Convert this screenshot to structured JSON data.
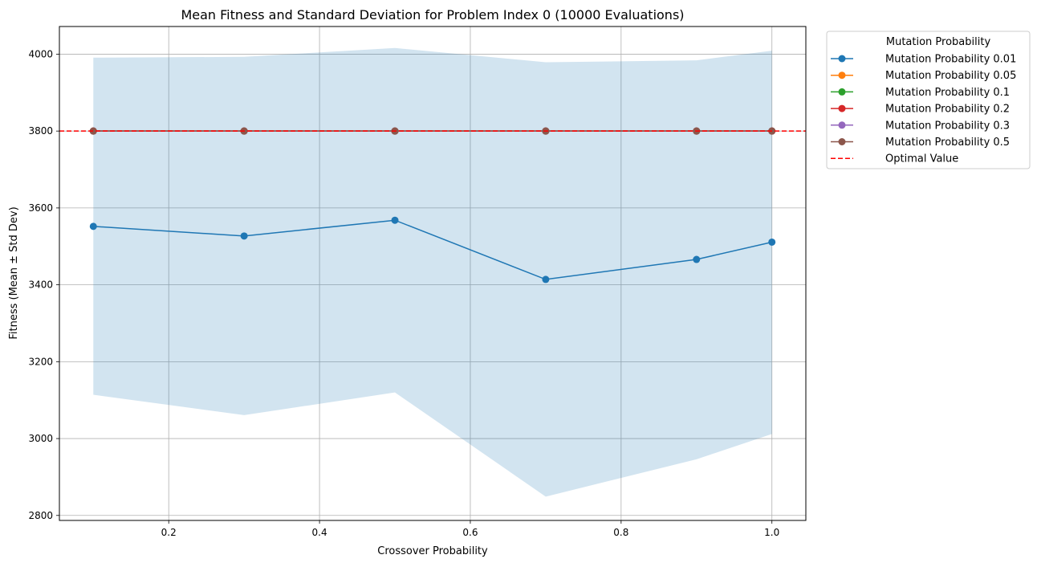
{
  "chart_data": {
    "type": "line",
    "title": "Mean Fitness and Standard Deviation for Problem Index 0 (10000 Evaluations)",
    "xlabel": "Crossover Probability",
    "ylabel": "Fitness (Mean ± Std Dev)",
    "xlim": [
      0.055,
      1.045
    ],
    "ylim": [
      2787,
      4072
    ],
    "xticks": [
      0.2,
      0.4,
      0.6,
      0.8,
      1.0
    ],
    "xtick_labels": [
      "0.2",
      "0.4",
      "0.6",
      "0.8",
      "1.0"
    ],
    "yticks": [
      2800,
      3000,
      3200,
      3400,
      3600,
      3800,
      4000
    ],
    "ytick_labels": [
      "2800",
      "3000",
      "3200",
      "3400",
      "3600",
      "3800",
      "4000"
    ],
    "grid": true,
    "legend_title": "Mutation Probability",
    "legend_position": "outside-top-right",
    "x": [
      0.1,
      0.3,
      0.5,
      0.7,
      0.9,
      1.0
    ],
    "series": [
      {
        "name": "Mutation Probability 0.01",
        "color": "#1f77b4",
        "mean": [
          3552,
          3527,
          3568,
          3414,
          3466,
          3511
        ],
        "lower": [
          3114,
          3061,
          3120,
          2849,
          2946,
          3012
        ],
        "upper": [
          3991,
          3993,
          4016,
          3979,
          3984,
          4009
        ]
      },
      {
        "name": "Mutation Probability 0.05",
        "color": "#ff7f0e",
        "mean": [
          3800,
          3800,
          3800,
          3800,
          3800,
          3800
        ]
      },
      {
        "name": "Mutation Probability 0.1",
        "color": "#2ca02c",
        "mean": [
          3800,
          3800,
          3800,
          3800,
          3800,
          3800
        ]
      },
      {
        "name": "Mutation Probability 0.2",
        "color": "#d62728",
        "mean": [
          3800,
          3800,
          3800,
          3800,
          3800,
          3800
        ]
      },
      {
        "name": "Mutation Probability 0.3",
        "color": "#9467bd",
        "mean": [
          3800,
          3800,
          3800,
          3800,
          3800,
          3800
        ]
      },
      {
        "name": "Mutation Probability 0.5",
        "color": "#8c564b",
        "mean": [
          3800,
          3800,
          3800,
          3800,
          3800,
          3800
        ]
      }
    ],
    "reference_line": {
      "name": "Optimal Value",
      "y": 3800,
      "color": "#ff0000",
      "style": "dashed"
    },
    "band_color": "#1f77b4",
    "band_opacity": 0.2
  }
}
